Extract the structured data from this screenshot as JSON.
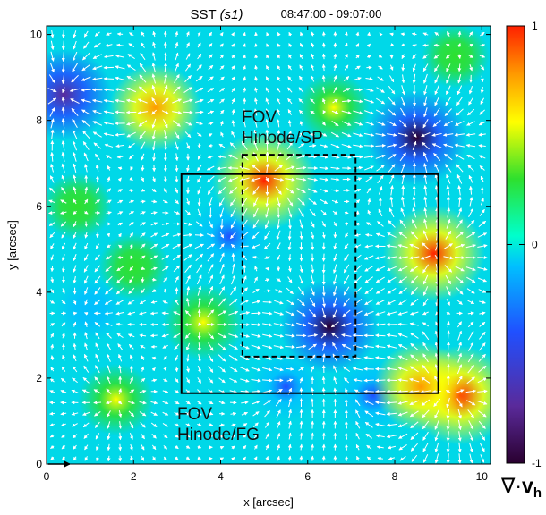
{
  "chart_data": {
    "type": "heatmap",
    "title": "SST (s1)",
    "title_instrument": "SST",
    "title_sequence": "(s1)",
    "time_range": "08:47:00 - 09:07:00",
    "xlabel": "x [arcsec]",
    "ylabel": "y [arcsec]",
    "xlim": [
      0,
      10.2
    ],
    "ylim": [
      0,
      10.2
    ],
    "x_ticks": [
      0,
      2,
      4,
      6,
      8,
      10
    ],
    "y_ticks": [
      0,
      2,
      4,
      6,
      8,
      10
    ],
    "grid": false,
    "colorbar": {
      "label_symbol": "∇·",
      "label_v": "v",
      "label_sub": "h",
      "range": [
        -1,
        1
      ],
      "ticks": [
        -1,
        0,
        1
      ],
      "tick_labels": [
        "-1",
        "0",
        "1"
      ],
      "colormap": [
        "#2a0030",
        "#5a2a9a",
        "#2050ff",
        "#00bfff",
        "#00ffcc",
        "#2ee02e",
        "#ffff00",
        "#ff9a00",
        "#ff2000"
      ]
    },
    "field_features": [
      {
        "x": 8.5,
        "y": 7.6,
        "div": -0.95
      },
      {
        "x": 6.5,
        "y": 3.2,
        "div": -0.9
      },
      {
        "x": 0.4,
        "y": 8.6,
        "div": -0.85
      },
      {
        "x": 4.2,
        "y": 5.3,
        "div": -0.6
      },
      {
        "x": 7.5,
        "y": 1.6,
        "div": -0.55
      },
      {
        "x": 5.0,
        "y": 6.6,
        "div": 1.0
      },
      {
        "x": 8.9,
        "y": 4.9,
        "div": 0.95
      },
      {
        "x": 9.5,
        "y": 1.6,
        "div": 1.0
      },
      {
        "x": 8.6,
        "y": 1.8,
        "div": 0.8
      },
      {
        "x": 2.5,
        "y": 8.3,
        "div": 0.75
      },
      {
        "x": 3.6,
        "y": 3.3,
        "div": 0.55
      },
      {
        "x": 1.6,
        "y": 1.5,
        "div": 0.45
      },
      {
        "x": 2.0,
        "y": 4.6,
        "div": 0.35
      },
      {
        "x": 6.6,
        "y": 8.3,
        "div": 0.4
      },
      {
        "x": 0.7,
        "y": 6.0,
        "div": 0.35
      },
      {
        "x": 9.4,
        "y": 9.5,
        "div": 0.3
      },
      {
        "x": 5.5,
        "y": 1.8,
        "div": -0.4
      },
      {
        "x": 1.0,
        "y": 3.6,
        "div": -0.3
      }
    ],
    "fov_boxes": [
      {
        "label_line1": "FOV",
        "label_line2": "Hinode/SP",
        "style": "dashed",
        "x0": 4.5,
        "x1": 7.1,
        "y0": 2.5,
        "y1": 7.2
      },
      {
        "label_line1": "FOV",
        "label_line2": "Hinode/FG",
        "style": "solid",
        "x0": 3.1,
        "x1": 9.0,
        "y0": 1.65,
        "y1": 6.75
      }
    ]
  }
}
